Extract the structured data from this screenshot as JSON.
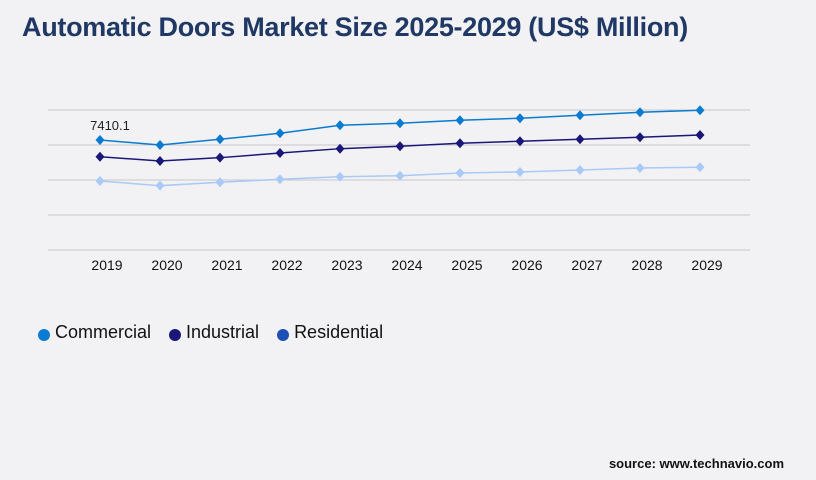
{
  "title": "Automatic Doors Market Size 2025-2029 (US$ Million)",
  "source": "source: www.technavio.com",
  "chart_data": {
    "type": "line",
    "title": "Automatic Doors Market Size 2025-2029 (US$ Million)",
    "categories": [
      "2019",
      "2020",
      "2021",
      "2022",
      "2023",
      "2024",
      "2025",
      "2026",
      "2027",
      "2028",
      "2029"
    ],
    "ylim": [
      0,
      9430
    ],
    "grid": true,
    "legend": "bottom-left",
    "series": [
      {
        "name": "Commercial",
        "color": "#0a7bd0",
        "legend_color": "#0a7bd0",
        "values": [
          7410.1,
          7073,
          7457,
          7862,
          8400,
          8535,
          8737,
          8872,
          9074,
          9276,
          9411
        ]
      },
      {
        "name": "Industrial",
        "color": "#1a1778",
        "legend_color": "#1a1778",
        "values": [
          6285,
          5995,
          6218,
          6534,
          6824,
          6986,
          7188,
          7323,
          7457,
          7592,
          7747
        ]
      },
      {
        "name": "Residential",
        "color": "#a9c9f7",
        "legend_color": "#1e4fb5",
        "values": [
          4648,
          4332,
          4561,
          4763,
          4938,
          5005,
          5187,
          5255,
          5389,
          5524,
          5571
        ]
      }
    ],
    "data_labels": [
      {
        "series": "Commercial",
        "category": "2019",
        "text": "7410.1"
      }
    ]
  }
}
